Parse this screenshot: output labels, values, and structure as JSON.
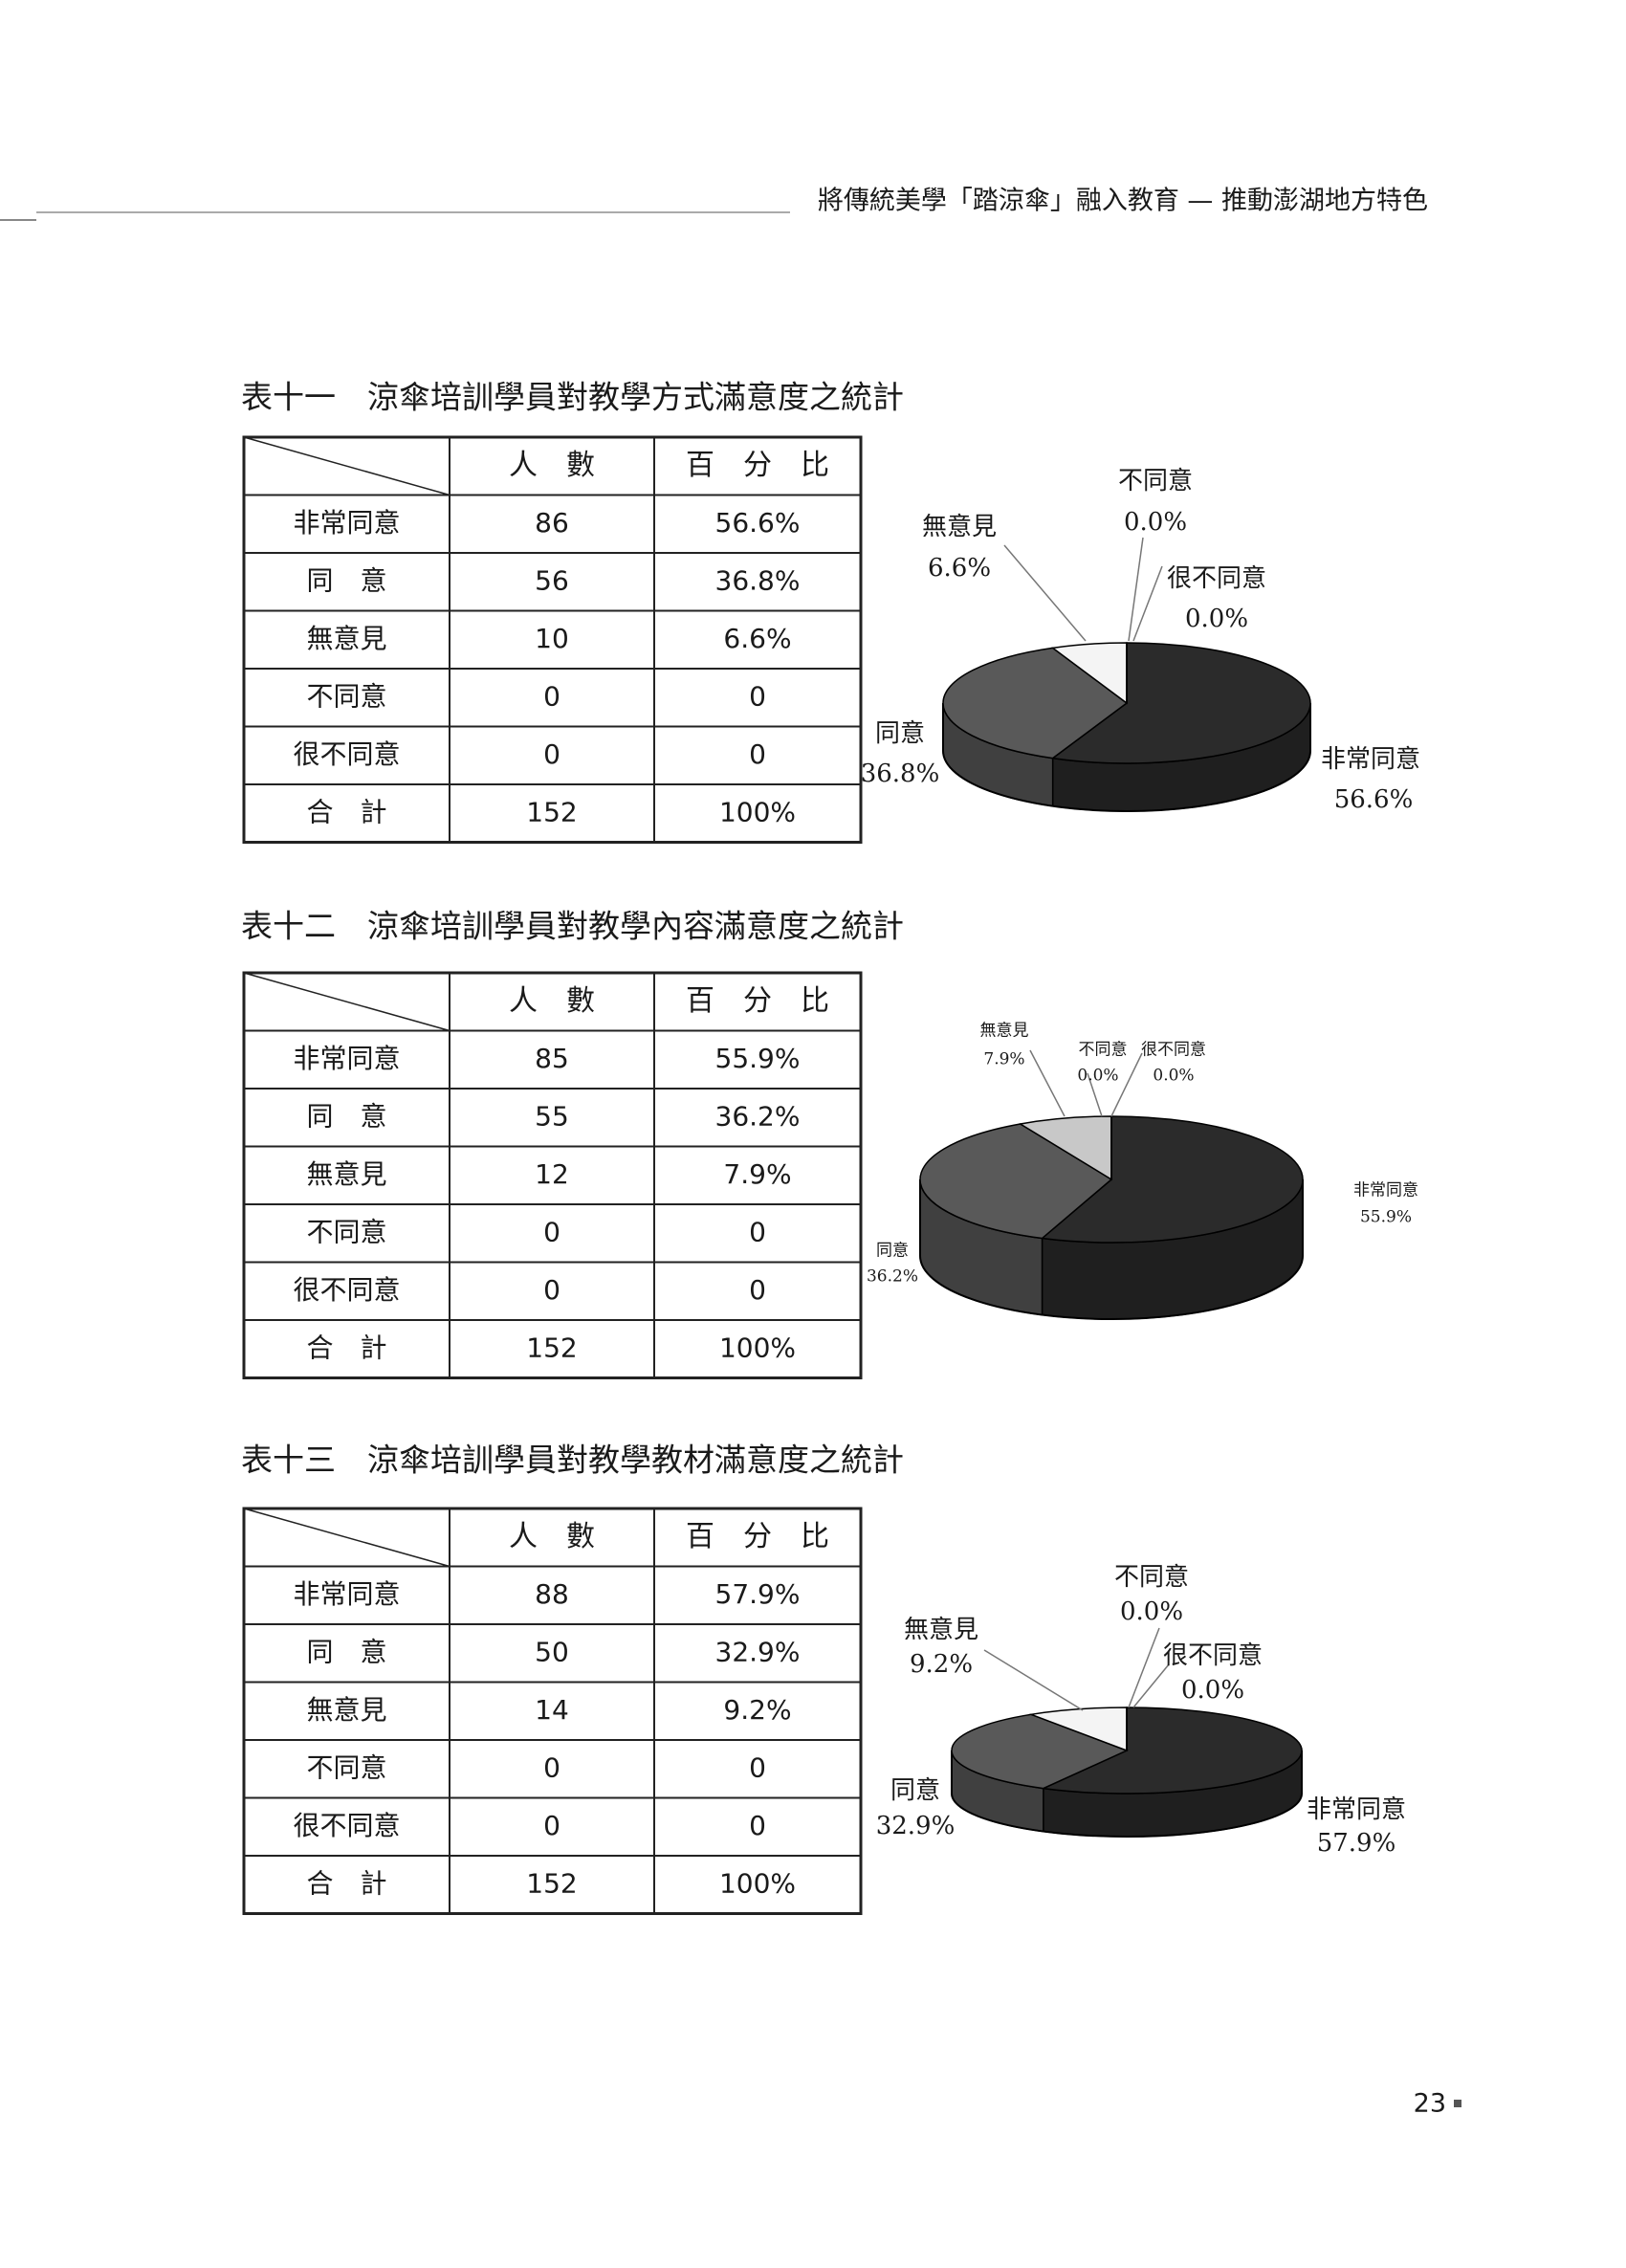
{
  "header": {
    "title": "將傳統美學「踏涼傘」融入教育 — 推動澎湖地方特色"
  },
  "page_number": "23",
  "sections": [
    {
      "title": "表十一　涼傘培訓學員對教學方式滿意度之統計",
      "table": {
        "columns": [
          "人　數",
          "百　分　比"
        ],
        "rows": [
          [
            "非常同意",
            "86",
            "56.6%"
          ],
          [
            "同　意",
            "56",
            "36.8%"
          ],
          [
            "無意見",
            "10",
            "6.6%"
          ],
          [
            "不同意",
            "0",
            "0"
          ],
          [
            "很不同意",
            "0",
            "0"
          ],
          [
            "合　計",
            "152",
            "100%"
          ]
        ]
      }
    },
    {
      "title": "表十二　涼傘培訓學員對教學內容滿意度之統計",
      "table": {
        "columns": [
          "人　數",
          "百　分　比"
        ],
        "rows": [
          [
            "非常同意",
            "85",
            "55.9%"
          ],
          [
            "同　意",
            "55",
            "36.2%"
          ],
          [
            "無意見",
            "12",
            "7.9%"
          ],
          [
            "不同意",
            "0",
            "0"
          ],
          [
            "很不同意",
            "0",
            "0"
          ],
          [
            "合　計",
            "152",
            "100%"
          ]
        ]
      }
    },
    {
      "title": "表十三　涼傘培訓學員對教學教材滿意度之統計",
      "table": {
        "columns": [
          "人　數",
          "百　分　比"
        ],
        "rows": [
          [
            "非常同意",
            "88",
            "57.9%"
          ],
          [
            "同　意",
            "50",
            "32.9%"
          ],
          [
            "無意見",
            "14",
            "9.2%"
          ],
          [
            "不同意",
            "0",
            "0"
          ],
          [
            "很不同意",
            "0",
            "0"
          ],
          [
            "合　計",
            "152",
            "100%"
          ]
        ]
      }
    }
  ],
  "chart_data": [
    {
      "type": "pie",
      "categories": [
        "非常同意",
        "同意",
        "無意見",
        "不同意",
        "很不同意"
      ],
      "values": [
        56.6,
        36.8,
        6.6,
        0,
        0
      ],
      "value_labels": [
        "56.6%",
        "36.8%",
        "6.6%",
        "0.0%",
        "0.0%"
      ],
      "colors": [
        "#2b2b2b",
        "#595959",
        "#f4f4f4",
        "#ffffff",
        "#ffffff"
      ]
    },
    {
      "type": "pie",
      "categories": [
        "非常同意",
        "同意",
        "無意見",
        "不同意",
        "很不同意"
      ],
      "values": [
        55.9,
        36.2,
        7.9,
        0,
        0
      ],
      "value_labels": [
        "55.9%",
        "36.2%",
        "7.9%",
        "0.0%",
        "0.0%"
      ],
      "colors": [
        "#2b2b2b",
        "#595959",
        "#c8c8c8",
        "#ffffff",
        "#ffffff"
      ]
    },
    {
      "type": "pie",
      "categories": [
        "非常同意",
        "同意",
        "無意見",
        "不同意",
        "很不同意"
      ],
      "values": [
        57.9,
        32.9,
        9.2,
        0,
        0
      ],
      "value_labels": [
        "57.9%",
        "32.9%",
        "9.2%",
        "0.0%",
        "0.0%"
      ],
      "colors": [
        "#2b2b2b",
        "#595959",
        "#f4f4f4",
        "#ffffff",
        "#ffffff"
      ]
    }
  ]
}
